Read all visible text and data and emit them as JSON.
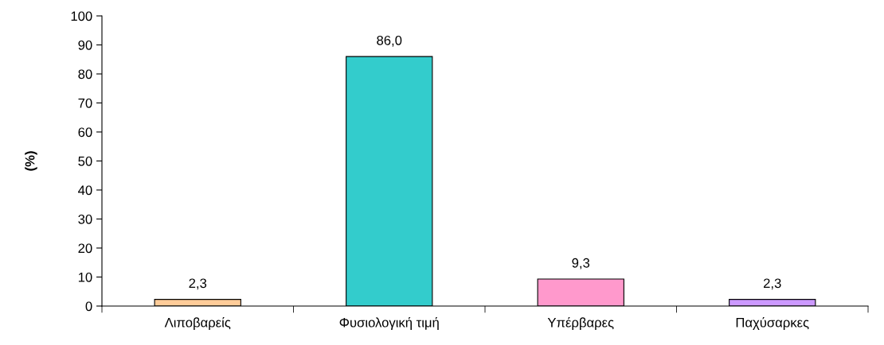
{
  "chart_data": {
    "type": "bar",
    "ylabel": "(%)",
    "categories": [
      "Λιποβαρείς",
      "Φυσιολογική τιμή",
      "Υπέρβαρες",
      "Παχύσαρκες"
    ],
    "values": [
      2.3,
      86.0,
      9.3,
      2.3
    ],
    "value_labels": [
      "2,3",
      "86,0",
      "9,3",
      "2,3"
    ],
    "colors": [
      "#ffcc99",
      "#33cccc",
      "#ff99cc",
      "#cc99ff"
    ],
    "ylim": [
      0,
      100
    ],
    "yticks": [
      0,
      10,
      20,
      30,
      40,
      50,
      60,
      70,
      80,
      90,
      100
    ],
    "grid": false,
    "legend": false
  }
}
